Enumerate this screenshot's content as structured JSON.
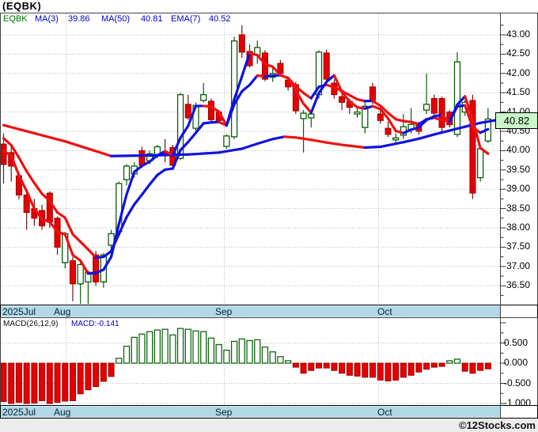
{
  "title": "(EQBK)",
  "legend": {
    "symbol": "EQBK",
    "items": [
      {
        "label": "MA(3)",
        "value": "39.86"
      },
      {
        "label": "MA(50)",
        "value": "40.81"
      },
      {
        "label": "EMA(7)",
        "value": "40.52"
      }
    ]
  },
  "macd_legend": {
    "label": "MACD(26,12,9)",
    "value": "MACD:-0.141"
  },
  "months": {
    "labels": [
      "2025Jul",
      "Aug",
      "Sep",
      "Oct"
    ]
  },
  "price_badge": {
    "value": "40.82"
  },
  "watermark": "©12Stocks.com",
  "colors": {
    "candle_up_stroke": "#0a5c0a",
    "candle_down_fill": "#e60000",
    "candle_down_stroke": "#9b0000",
    "wick_up": "#0a5c0a",
    "wick_down": "#701318",
    "ma_up": "#1212dd",
    "ma_down": "#ee1111",
    "month_bar_bg": "#b2d8e8",
    "badge_bg": "#c9f8c9",
    "grid": "#b6b6b6",
    "box_border": "#444444",
    "bar_border": "#000000",
    "bottom_strip": "#ececec"
  },
  "chart_data": {
    "type": "candlestick",
    "symbol": "EQBK",
    "title": "(EQBK)",
    "last_close": 40.82,
    "price_ticks": [
      43.0,
      42.5,
      42.0,
      41.5,
      41.0,
      40.5,
      40.0,
      39.5,
      39.0,
      38.5,
      38.0,
      37.5,
      37.0,
      36.5
    ],
    "ylim": [
      35.95,
      43.3
    ],
    "x_months": [
      "2025Jul",
      "Aug",
      "Sep",
      "Oct"
    ],
    "month_lines_x": [
      83.5,
      283.5,
      478.5
    ],
    "month_label_x": [
      3,
      68,
      272,
      477
    ],
    "candles": [
      [
        40.17,
        40.45,
        39.15,
        39.64
      ],
      [
        39.95,
        40.15,
        39.2,
        39.6
      ],
      [
        39.35,
        39.45,
        38.74,
        38.85
      ],
      [
        38.85,
        38.95,
        37.95,
        38.4
      ],
      [
        38.5,
        38.75,
        38.05,
        38.25
      ],
      [
        38.45,
        38.6,
        37.95,
        38.05
      ],
      [
        38.9,
        38.95,
        38.0,
        38.15
      ],
      [
        38.25,
        38.3,
        37.3,
        37.5
      ],
      [
        37.1,
        37.9,
        36.95,
        37.85
      ],
      [
        37.15,
        37.25,
        36.1,
        36.55
      ],
      [
        36.55,
        37.1,
        35.95,
        37.05
      ],
      [
        36.6,
        36.9,
        35.9,
        36.85
      ],
      [
        37.3,
        37.4,
        36.5,
        36.6
      ],
      [
        36.6,
        37.35,
        36.45,
        37.3
      ],
      [
        37.55,
        37.95,
        37.4,
        37.85
      ],
      [
        37.9,
        39.2,
        37.85,
        39.15
      ],
      [
        39.25,
        39.65,
        39.1,
        39.6
      ],
      [
        39.4,
        39.7,
        39.3,
        39.6
      ],
      [
        40.0,
        40.1,
        39.55,
        39.62
      ],
      [
        39.74,
        40.0,
        39.65,
        39.92
      ],
      [
        39.9,
        40.15,
        39.8,
        40.1
      ],
      [
        39.98,
        40.3,
        39.7,
        39.92
      ],
      [
        40.08,
        40.15,
        39.55,
        39.62
      ],
      [
        39.8,
        41.5,
        39.75,
        41.45
      ],
      [
        41.2,
        41.45,
        40.8,
        40.85
      ],
      [
        40.58,
        41.25,
        40.5,
        41.17
      ],
      [
        41.3,
        41.75,
        41.25,
        41.45
      ],
      [
        41.28,
        41.35,
        40.75,
        40.8
      ],
      [
        41.0,
        41.05,
        40.7,
        40.78
      ],
      [
        40.11,
        40.42,
        40.05,
        40.38
      ],
      [
        40.36,
        42.95,
        40.3,
        42.84
      ],
      [
        43.0,
        43.25,
        42.4,
        42.55
      ],
      [
        42.57,
        42.75,
        42.15,
        42.2
      ],
      [
        42.47,
        42.85,
        42.25,
        42.67
      ],
      [
        42.53,
        42.6,
        41.8,
        41.85
      ],
      [
        41.9,
        42.2,
        41.78,
        42.0
      ],
      [
        42.26,
        42.35,
        41.95,
        42.0
      ],
      [
        41.83,
        41.9,
        41.55,
        41.65
      ],
      [
        41.71,
        41.78,
        40.95,
        41.03
      ],
      [
        40.83,
        41.05,
        39.95,
        40.97
      ],
      [
        40.85,
        41.05,
        40.6,
        40.95
      ],
      [
        41.45,
        42.6,
        41.35,
        42.55
      ],
      [
        42.53,
        42.62,
        41.8,
        41.85
      ],
      [
        41.75,
        41.85,
        41.35,
        41.45
      ],
      [
        41.4,
        41.5,
        41.05,
        41.25
      ],
      [
        41.28,
        41.35,
        40.95,
        41.12
      ],
      [
        40.95,
        41.1,
        40.85,
        41.0
      ],
      [
        40.6,
        41.25,
        40.45,
        41.15
      ],
      [
        41.65,
        41.75,
        41.2,
        41.3
      ],
      [
        40.95,
        41.05,
        40.7,
        40.78
      ],
      [
        40.58,
        40.75,
        40.35,
        40.42
      ],
      [
        40.28,
        40.45,
        40.15,
        40.33
      ],
      [
        40.4,
        40.95,
        40.3,
        40.62
      ],
      [
        40.55,
        41.1,
        40.45,
        40.68
      ],
      [
        40.68,
        40.75,
        40.42,
        40.5
      ],
      [
        41.05,
        42.0,
        40.95,
        41.2
      ],
      [
        41.35,
        41.45,
        40.9,
        40.97
      ],
      [
        41.35,
        41.4,
        40.5,
        40.6
      ],
      [
        41.0,
        41.05,
        40.6,
        40.67
      ],
      [
        40.42,
        42.55,
        40.35,
        42.3
      ],
      [
        41.0,
        41.3,
        40.9,
        41.25
      ],
      [
        41.3,
        41.45,
        38.75,
        38.9
      ],
      [
        39.3,
        40.1,
        39.2,
        40.05
      ],
      [
        40.25,
        41.1,
        40.2,
        40.82
      ]
    ],
    "ma50_points": [
      [
        0,
        40.66
      ],
      [
        4,
        40.45
      ],
      [
        8,
        40.24
      ],
      [
        11,
        40.05
      ],
      [
        14,
        39.86
      ],
      [
        17,
        39.87
      ],
      [
        20,
        39.88
      ],
      [
        24,
        39.9
      ],
      [
        28,
        39.95
      ],
      [
        31,
        40.05
      ],
      [
        33,
        40.18
      ],
      [
        35,
        40.3
      ],
      [
        36.5,
        40.36
      ],
      [
        38,
        40.34
      ],
      [
        40,
        40.28
      ],
      [
        42,
        40.21
      ],
      [
        44,
        40.15
      ],
      [
        47,
        40.08
      ],
      [
        49,
        40.1
      ],
      [
        52,
        40.22
      ],
      [
        54,
        40.31
      ],
      [
        56,
        40.42
      ],
      [
        58,
        40.52
      ],
      [
        60,
        40.62
      ],
      [
        62,
        40.72
      ],
      [
        64.6,
        40.81
      ]
    ],
    "ma_fast_seed": {
      "ema7_start": 40.55,
      "ma3_prev": [
        40.35,
        40.0
      ]
    },
    "ma_values_now": {
      "ma3": 39.86,
      "ma50": 40.81,
      "ema7": 40.52
    },
    "macd": {
      "params": [
        26,
        12,
        9
      ],
      "current": -0.141,
      "ticks": [
        0.5,
        0.0,
        -0.5,
        -1.0
      ],
      "histogram": [
        -0.95,
        -1.0,
        -0.97,
        -1.0,
        -0.99,
        -0.93,
        -1.0,
        -0.97,
        -0.94,
        -0.93,
        -0.76,
        -0.66,
        -0.58,
        -0.45,
        -0.33,
        0.12,
        0.42,
        0.64,
        0.72,
        0.78,
        0.82,
        0.84,
        0.7,
        0.86,
        0.84,
        0.8,
        0.78,
        0.62,
        0.46,
        0.32,
        0.54,
        0.6,
        0.56,
        0.58,
        0.4,
        0.28,
        0.16,
        0.06,
        -0.1,
        -0.25,
        -0.18,
        -0.12,
        -0.12,
        -0.18,
        -0.25,
        -0.3,
        -0.32,
        -0.35,
        -0.35,
        -0.42,
        -0.44,
        -0.42,
        -0.35,
        -0.3,
        -0.22,
        -0.15,
        -0.1,
        -0.08,
        0.06,
        0.1,
        -0.2,
        -0.25,
        -0.18,
        -0.141
      ]
    }
  }
}
